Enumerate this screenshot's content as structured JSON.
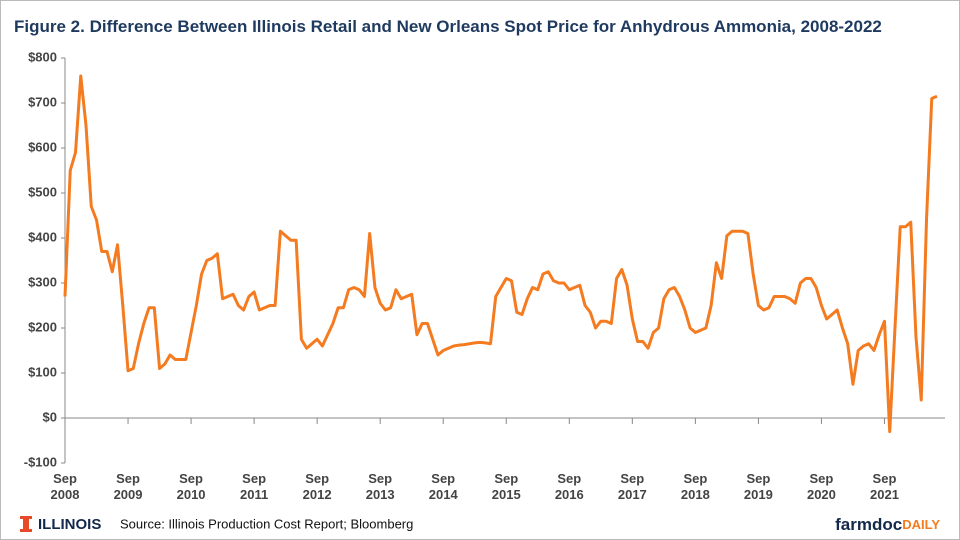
{
  "chart_data": {
    "type": "line",
    "title": "Figure 2. Difference Between Illinois Retail and New Orleans Spot Price for Anhydrous Ammonia, 2008-2022",
    "source": "Source: Illinois Production Cost Report; Bloomberg",
    "logo_left": "ILLINOIS",
    "logo_right": [
      "farmdoc",
      "DAILY"
    ],
    "x": [
      "2008-09",
      "2008-10",
      "2008-11",
      "2008-12",
      "2009-01",
      "2009-02",
      "2009-03",
      "2009-04",
      "2009-05",
      "2009-06",
      "2009-07",
      "2009-08",
      "2009-09",
      "2009-10",
      "2009-11",
      "2009-12",
      "2010-01",
      "2010-02",
      "2010-03",
      "2010-04",
      "2010-05",
      "2010-06",
      "2010-07",
      "2010-08",
      "2010-09",
      "2010-10",
      "2010-11",
      "2010-12",
      "2011-01",
      "2011-02",
      "2011-03",
      "2011-04",
      "2011-05",
      "2011-06",
      "2011-07",
      "2011-08",
      "2011-09",
      "2011-10",
      "2011-11",
      "2011-12",
      "2012-01",
      "2012-02",
      "2012-03",
      "2012-04",
      "2012-05",
      "2012-06",
      "2012-07",
      "2012-08",
      "2012-09",
      "2012-10",
      "2012-11",
      "2012-12",
      "2013-01",
      "2013-02",
      "2013-03",
      "2013-04",
      "2013-05",
      "2013-06",
      "2013-07",
      "2013-08",
      "2013-09",
      "2013-10",
      "2013-11",
      "2013-12",
      "2014-01",
      "2014-02",
      "2014-03",
      "2014-04",
      "2014-05",
      "2014-06",
      "2014-07",
      "2014-08",
      "2014-09",
      "2014-10",
      "2014-11",
      "2014-12",
      "2015-01",
      "2015-02",
      "2015-03",
      "2015-04",
      "2015-05",
      "2015-06",
      "2015-07",
      "2015-08",
      "2015-09",
      "2015-10",
      "2015-11",
      "2015-12",
      "2016-01",
      "2016-02",
      "2016-03",
      "2016-04",
      "2016-05",
      "2016-06",
      "2016-07",
      "2016-08",
      "2016-09",
      "2016-10",
      "2016-11",
      "2016-12",
      "2017-01",
      "2017-02",
      "2017-03",
      "2017-04",
      "2017-05",
      "2017-06",
      "2017-07",
      "2017-08",
      "2017-09",
      "2017-10",
      "2017-11",
      "2017-12",
      "2018-01",
      "2018-02",
      "2018-03",
      "2018-04",
      "2018-05",
      "2018-06",
      "2018-07",
      "2018-08",
      "2018-09",
      "2018-10",
      "2018-11",
      "2018-12",
      "2019-01",
      "2019-02",
      "2019-03",
      "2019-04",
      "2019-05",
      "2019-06",
      "2019-07",
      "2019-08",
      "2019-09",
      "2019-10",
      "2019-11",
      "2019-12",
      "2020-01",
      "2020-02",
      "2020-03",
      "2020-04",
      "2020-05",
      "2020-06",
      "2020-07",
      "2020-08",
      "2020-09",
      "2020-10",
      "2020-11",
      "2020-12",
      "2021-01",
      "2021-02",
      "2021-03",
      "2021-04",
      "2021-05",
      "2021-06",
      "2021-07",
      "2021-08",
      "2021-09",
      "2021-10",
      "2021-11",
      "2021-12",
      "2022-01",
      "2022-02",
      "2022-03",
      "2022-04",
      "2022-05",
      "2022-06",
      "2022-07"
    ],
    "series": [
      {
        "color": "#f47b20",
        "values": [
          270,
          550,
          590,
          760,
          650,
          470,
          440,
          370,
          370,
          325,
          385,
          250,
          105,
          110,
          165,
          210,
          245,
          245,
          110,
          120,
          140,
          130,
          130,
          130,
          190,
          250,
          320,
          350,
          355,
          365,
          265,
          270,
          275,
          250,
          240,
          270,
          280,
          240,
          245,
          250,
          250,
          415,
          405,
          395,
          395,
          175,
          155,
          165,
          175,
          160,
          185,
          210,
          245,
          245,
          285,
          290,
          285,
          270,
          410,
          290,
          255,
          240,
          245,
          285,
          265,
          270,
          275,
          185,
          210,
          210,
          175,
          140,
          150,
          155,
          160,
          162,
          163,
          165,
          167,
          168,
          167,
          165,
          270,
          290,
          310,
          305,
          235,
          230,
          265,
          290,
          285,
          320,
          325,
          305,
          300,
          300,
          285,
          290,
          295,
          250,
          235,
          200,
          215,
          215,
          210,
          310,
          330,
          295,
          220,
          170,
          170,
          155,
          190,
          200,
          265,
          285,
          290,
          270,
          240,
          200,
          190,
          195,
          200,
          250,
          345,
          310,
          405,
          415,
          415,
          415,
          410,
          320,
          250,
          240,
          245,
          270,
          270,
          270,
          265,
          255,
          300,
          310,
          310,
          290,
          250,
          220,
          230,
          240,
          200,
          165,
          75,
          150,
          160,
          165,
          150,
          185,
          215,
          -30,
          200,
          425,
          425,
          435,
          180,
          40,
          440,
          710,
          715
        ]
      }
    ],
    "ylim": [
      -100,
      800
    ],
    "yticks": [
      {
        "value": -100,
        "label": "-$100"
      },
      {
        "value": 0,
        "label": "$0"
      },
      {
        "value": 100,
        "label": "$100"
      },
      {
        "value": 200,
        "label": "$200"
      },
      {
        "value": 300,
        "label": "$300"
      },
      {
        "value": 400,
        "label": "$400"
      },
      {
        "value": 500,
        "label": "$500"
      },
      {
        "value": 600,
        "label": "$600"
      },
      {
        "value": 700,
        "label": "$700"
      },
      {
        "value": 800,
        "label": "$800"
      }
    ],
    "xticks": [
      {
        "value": "2008-09",
        "label": [
          "Sep",
          "2008"
        ]
      },
      {
        "value": "2009-09",
        "label": [
          "Sep",
          "2009"
        ]
      },
      {
        "value": "2010-09",
        "label": [
          "Sep",
          "2010"
        ]
      },
      {
        "value": "2011-09",
        "label": [
          "Sep",
          "2011"
        ]
      },
      {
        "value": "2012-09",
        "label": [
          "Sep",
          "2012"
        ]
      },
      {
        "value": "2013-09",
        "label": [
          "Sep",
          "2013"
        ]
      },
      {
        "value": "2014-09",
        "label": [
          "Sep",
          "2014"
        ]
      },
      {
        "value": "2015-09",
        "label": [
          "Sep",
          "2015"
        ]
      },
      {
        "value": "2016-09",
        "label": [
          "Sep",
          "2016"
        ]
      },
      {
        "value": "2017-09",
        "label": [
          "Sep",
          "2017"
        ]
      },
      {
        "value": "2018-09",
        "label": [
          "Sep",
          "2018"
        ]
      },
      {
        "value": "2019-09",
        "label": [
          "Sep",
          "2019"
        ]
      },
      {
        "value": "2020-09",
        "label": [
          "Sep",
          "2020"
        ]
      },
      {
        "value": "2021-09",
        "label": [
          "Sep",
          "2021"
        ]
      }
    ],
    "grid": false
  }
}
